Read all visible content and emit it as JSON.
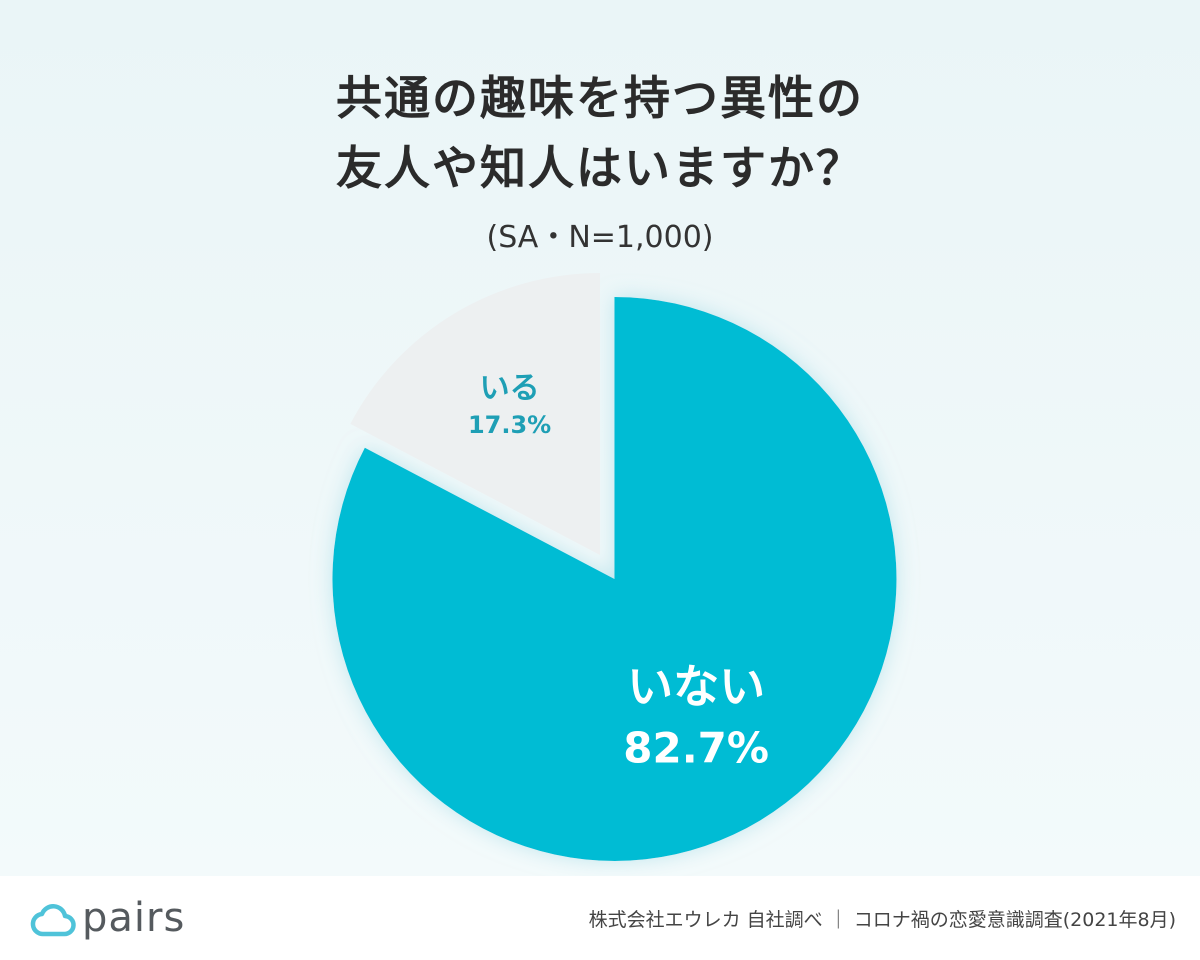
{
  "chart_data": {
    "type": "pie",
    "title": "共通の趣味を持つ異性の\n友人や知人はいますか？",
    "title_lines": [
      "共通の趣味を持つ異性の",
      "友人や知人はいますか？"
    ],
    "subtitle": "(SA・N=1,000)",
    "slices": [
      {
        "label": "いない",
        "value": 82.7,
        "value_label": "82.7%",
        "color": "#00bcd4",
        "label_color": "#ffffff"
      },
      {
        "label": "いる",
        "value": 17.3,
        "value_label": "17.3%",
        "color": "#edf0f1",
        "label_color": "#1e9fb5"
      }
    ],
    "start_angle_deg": 0,
    "direction": "clockwise",
    "exploded_slice": "いない",
    "legend": "none"
  },
  "footer": {
    "logo_text": "pairs",
    "logo_color": "#4fc3d9",
    "source": "株式会社エウレカ 自社調べ ｜ コロナ禍の恋愛意識調査(2021年8月)"
  }
}
